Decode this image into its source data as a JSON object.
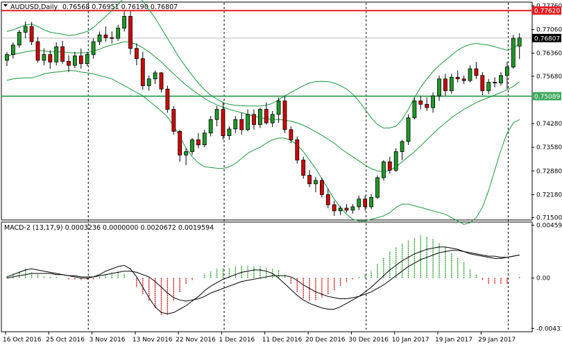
{
  "header": {
    "symbol": "AUDUSD,Daily",
    "ohlc": "0.76568 0.76951 0.76190 0.76807"
  },
  "macd_header": {
    "label": "MACD-2 (13,17,9) 0.0003236 0.0000000 0.0020672 0.0019594"
  },
  "colors": {
    "bull": "#1f9a27",
    "bear": "#d20000",
    "bands": "#1a9a3c",
    "resistance": "#e31e24",
    "support": "#41a85f",
    "label_box": "#000000"
  },
  "chart_data": [
    {
      "type": "candlestick",
      "instrument": "AUDUSD",
      "timeframe": "Daily",
      "ylim": [
        0.7145,
        0.7785
      ],
      "y_ticks": [
        "0.77760",
        "0.77060",
        "0.76360",
        "0.75680",
        "0.74280",
        "0.73580",
        "0.72880",
        "0.72180",
        "0.71500"
      ],
      "y_tick_values": [
        0.7776,
        0.7706,
        0.7636,
        0.7568,
        0.7428,
        0.7358,
        0.7288,
        0.7218,
        0.715
      ],
      "x_labels": [
        "16 Oct 2016",
        "25 Oct 2016",
        "3 Nov 2016",
        "13 Nov 2016",
        "22 Nov 2016",
        "1 Dec 2016",
        "11 Dec 2016",
        "20 Dec 2016",
        "30 Dec 2016",
        "10 Jan 2017",
        "19 Jan 2017",
        "29 Jan 2017"
      ],
      "x_label_index": [
        0,
        7,
        14,
        21,
        28,
        35,
        42,
        49,
        56,
        63,
        70,
        77
      ],
      "price_levels": [
        {
          "name": "resistance",
          "value": 0.7762,
          "label": "0.77620"
        },
        {
          "name": "support",
          "value": 0.75089,
          "label": "0.75089"
        },
        {
          "name": "last",
          "value": 0.76807,
          "label": "0.76807"
        }
      ],
      "candles": [
        [
          0.7615,
          0.764,
          0.7598,
          0.7632
        ],
        [
          0.7632,
          0.7668,
          0.762,
          0.766
        ],
        [
          0.766,
          0.7705,
          0.7652,
          0.7698
        ],
        [
          0.7698,
          0.773,
          0.768,
          0.7715
        ],
        [
          0.7715,
          0.7728,
          0.766,
          0.767
        ],
        [
          0.767,
          0.7684,
          0.7608,
          0.7615
        ],
        [
          0.7615,
          0.765,
          0.76,
          0.7632
        ],
        [
          0.7632,
          0.7645,
          0.759,
          0.761
        ],
        [
          0.761,
          0.7668,
          0.76,
          0.7655
        ],
        [
          0.7655,
          0.7672,
          0.7605,
          0.7612
        ],
        [
          0.7612,
          0.763,
          0.758,
          0.76
        ],
        [
          0.76,
          0.764,
          0.7592,
          0.7628
        ],
        [
          0.7628,
          0.765,
          0.759,
          0.7605
        ],
        [
          0.7605,
          0.764,
          0.7598,
          0.7632
        ],
        [
          0.7632,
          0.768,
          0.762,
          0.767
        ],
        [
          0.767,
          0.77,
          0.766,
          0.769
        ],
        [
          0.769,
          0.7715,
          0.767,
          0.7682
        ],
        [
          0.7682,
          0.77,
          0.7665,
          0.768
        ],
        [
          0.768,
          0.772,
          0.7672,
          0.771
        ],
        [
          0.771,
          0.776,
          0.77,
          0.7745
        ],
        [
          0.7745,
          0.776,
          0.7632,
          0.765
        ],
        [
          0.765,
          0.7665,
          0.76,
          0.762
        ],
        [
          0.762,
          0.764,
          0.7528,
          0.754
        ],
        [
          0.754,
          0.757,
          0.7525,
          0.756
        ],
        [
          0.756,
          0.7585,
          0.7545,
          0.7578
        ],
        [
          0.7578,
          0.758,
          0.752,
          0.753
        ],
        [
          0.753,
          0.754,
          0.746,
          0.747
        ],
        [
          0.747,
          0.748,
          0.7395,
          0.7405
        ],
        [
          0.7405,
          0.741,
          0.7315,
          0.7335
        ],
        [
          0.7335,
          0.7355,
          0.7305,
          0.7345
        ],
        [
          0.7345,
          0.7385,
          0.7335,
          0.738
        ],
        [
          0.738,
          0.74,
          0.7355,
          0.7365
        ],
        [
          0.7365,
          0.741,
          0.7358,
          0.74
        ],
        [
          0.74,
          0.745,
          0.739,
          0.744
        ],
        [
          0.744,
          0.748,
          0.742,
          0.747
        ],
        [
          0.747,
          0.749,
          0.738,
          0.7392
        ],
        [
          0.7392,
          0.742,
          0.738,
          0.7412
        ],
        [
          0.7412,
          0.745,
          0.74,
          0.744
        ],
        [
          0.744,
          0.746,
          0.7395,
          0.741
        ],
        [
          0.741,
          0.747,
          0.7405,
          0.7455
        ],
        [
          0.7455,
          0.747,
          0.741,
          0.7425
        ],
        [
          0.7425,
          0.7475,
          0.7415,
          0.747
        ],
        [
          0.747,
          0.749,
          0.7425,
          0.743
        ],
        [
          0.743,
          0.7465,
          0.7418,
          0.7455
        ],
        [
          0.7455,
          0.7505,
          0.743,
          0.7495
        ],
        [
          0.7495,
          0.751,
          0.74,
          0.741
        ],
        [
          0.741,
          0.742,
          0.737,
          0.738
        ],
        [
          0.738,
          0.739,
          0.731,
          0.732
        ],
        [
          0.732,
          0.733,
          0.7265,
          0.7275
        ],
        [
          0.7275,
          0.729,
          0.724,
          0.725
        ],
        [
          0.725,
          0.727,
          0.7225,
          0.726
        ],
        [
          0.726,
          0.7268,
          0.721,
          0.7218
        ],
        [
          0.7218,
          0.7235,
          0.7178,
          0.7188
        ],
        [
          0.7188,
          0.72,
          0.7155,
          0.717
        ],
        [
          0.717,
          0.7185,
          0.7158,
          0.7178
        ],
        [
          0.7178,
          0.719,
          0.7165,
          0.7172
        ],
        [
          0.7172,
          0.719,
          0.7162,
          0.7182
        ],
        [
          0.7182,
          0.7215,
          0.7172,
          0.7205
        ],
        [
          0.7205,
          0.7215,
          0.717,
          0.7182
        ],
        [
          0.7182,
          0.722,
          0.7175,
          0.721
        ],
        [
          0.721,
          0.7275,
          0.7205,
          0.7268
        ],
        [
          0.7268,
          0.732,
          0.726,
          0.7315
        ],
        [
          0.7315,
          0.733,
          0.728,
          0.729
        ],
        [
          0.729,
          0.7355,
          0.7285,
          0.7345
        ],
        [
          0.7345,
          0.738,
          0.732,
          0.7375
        ],
        [
          0.7375,
          0.7455,
          0.7365,
          0.7445
        ],
        [
          0.7445,
          0.7505,
          0.744,
          0.7495
        ],
        [
          0.7495,
          0.751,
          0.747,
          0.7485
        ],
        [
          0.7485,
          0.7505,
          0.7465,
          0.7475
        ],
        [
          0.7475,
          0.752,
          0.746,
          0.751
        ],
        [
          0.751,
          0.757,
          0.7495,
          0.756
        ],
        [
          0.756,
          0.7575,
          0.751,
          0.7525
        ],
        [
          0.7525,
          0.7575,
          0.7515,
          0.7565
        ],
        [
          0.7565,
          0.7585,
          0.755,
          0.756
        ],
        [
          0.756,
          0.757,
          0.7545,
          0.7555
        ],
        [
          0.7555,
          0.76,
          0.755,
          0.759
        ],
        [
          0.759,
          0.761,
          0.756,
          0.757
        ],
        [
          0.757,
          0.758,
          0.7512,
          0.7525
        ],
        [
          0.7525,
          0.756,
          0.7515,
          0.755
        ],
        [
          0.755,
          0.7565,
          0.7535,
          0.7548
        ],
        [
          0.7548,
          0.758,
          0.754,
          0.757
        ],
        [
          0.757,
          0.761,
          0.753,
          0.7595
        ],
        [
          0.7595,
          0.769,
          0.759,
          0.768
        ],
        [
          0.7657,
          0.7695,
          0.7619,
          0.7681
        ]
      ],
      "bollinger": {
        "upper": [
          0.77,
          0.7705,
          0.7712,
          0.772,
          0.7722,
          0.7715,
          0.7705,
          0.7698,
          0.7695,
          0.7692,
          0.7688,
          0.769,
          0.7695,
          0.77,
          0.7712,
          0.7728,
          0.7745,
          0.7762,
          0.778,
          0.78,
          0.7805,
          0.7805,
          0.779,
          0.7765,
          0.774,
          0.771,
          0.768,
          0.765,
          0.762,
          0.7595,
          0.757,
          0.7548,
          0.7528,
          0.7512,
          0.75,
          0.749,
          0.7485,
          0.7482,
          0.7481,
          0.748,
          0.748,
          0.748,
          0.7482,
          0.7488,
          0.7498,
          0.751,
          0.752,
          0.753,
          0.754,
          0.7548,
          0.7552,
          0.7553,
          0.7552,
          0.7548,
          0.754,
          0.753,
          0.7515,
          0.7495,
          0.747,
          0.7445,
          0.7425,
          0.7415,
          0.7415,
          0.742,
          0.744,
          0.747,
          0.7505,
          0.7535,
          0.756,
          0.7582,
          0.76,
          0.7615,
          0.763,
          0.7645,
          0.7655,
          0.7662,
          0.7665,
          0.7662,
          0.766,
          0.7655,
          0.765,
          0.7645,
          0.765,
          0.7665
        ],
        "middle": [
          0.7628,
          0.7632,
          0.7636,
          0.764,
          0.7643,
          0.7644,
          0.7643,
          0.764,
          0.764,
          0.764,
          0.7638,
          0.7637,
          0.7637,
          0.7638,
          0.7642,
          0.7648,
          0.7655,
          0.766,
          0.7665,
          0.767,
          0.7668,
          0.7662,
          0.7652,
          0.764,
          0.7625,
          0.761,
          0.7592,
          0.7575,
          0.7558,
          0.7542,
          0.7528,
          0.7515,
          0.7502,
          0.7492,
          0.7483,
          0.7476,
          0.747,
          0.7465,
          0.746,
          0.7455,
          0.745,
          0.7446,
          0.7442,
          0.744,
          0.744,
          0.7438,
          0.7435,
          0.743,
          0.7423,
          0.7414,
          0.7404,
          0.7393,
          0.7382,
          0.737,
          0.7355,
          0.7342,
          0.733,
          0.7318,
          0.7305,
          0.7295,
          0.7288,
          0.7285,
          0.729,
          0.73,
          0.7315,
          0.733,
          0.7345,
          0.7362,
          0.738,
          0.7398,
          0.7415,
          0.743,
          0.7445,
          0.7458,
          0.747,
          0.748,
          0.749,
          0.7498,
          0.7505,
          0.7512,
          0.752,
          0.7528,
          0.7538,
          0.7552
        ],
        "lower": [
          0.7556,
          0.756,
          0.7562,
          0.7563,
          0.7563,
          0.7568,
          0.7575,
          0.7578,
          0.758,
          0.7582,
          0.7585,
          0.7584,
          0.758,
          0.7578,
          0.7575,
          0.757,
          0.7565,
          0.756,
          0.755,
          0.754,
          0.753,
          0.752,
          0.751,
          0.7495,
          0.748,
          0.7465,
          0.7448,
          0.742,
          0.739,
          0.7355,
          0.733,
          0.7312,
          0.73,
          0.7298,
          0.7296,
          0.7295,
          0.73,
          0.731,
          0.7325,
          0.734,
          0.735,
          0.7358,
          0.737,
          0.738,
          0.7385,
          0.7385,
          0.7378,
          0.7365,
          0.7345,
          0.732,
          0.7295,
          0.7265,
          0.7235,
          0.7205,
          0.718,
          0.716,
          0.7145,
          0.714,
          0.714,
          0.7145,
          0.715,
          0.7155,
          0.7165,
          0.718,
          0.719,
          0.719,
          0.7185,
          0.718,
          0.7175,
          0.717,
          0.7165,
          0.716,
          0.715,
          0.714,
          0.713,
          0.7135,
          0.715,
          0.718,
          0.723,
          0.729,
          0.735,
          0.74,
          0.743,
          0.744
        ]
      }
    },
    {
      "type": "macd",
      "label": "MACD-2 (13,17,9)",
      "ylim": [
        -0.0046,
        0.0048
      ],
      "y_ticks": [
        "0.004595",
        "0.00",
        "-0.004378"
      ],
      "y_tick_values": [
        0.004595,
        0.0,
        -0.004378
      ],
      "histogram": [
        0.0002,
        0.0004,
        0.0006,
        0.0008,
        0.0005,
        0.0003,
        0.0002,
        0.0001,
        0.0001,
        0.0,
        -0.0001,
        -0.0001,
        -0.0002,
        -0.0002,
        -0.0001,
        0.0001,
        0.0003,
        0.0005,
        0.0006,
        0.0004,
        0.0,
        -0.0008,
        -0.0014,
        -0.002,
        -0.0026,
        -0.0032,
        -0.0032,
        -0.002,
        -0.0012,
        -0.0005,
        -0.0002,
        0.0,
        0.0004,
        0.0006,
        0.0008,
        0.0009,
        0.0009,
        0.001,
        0.0011,
        0.0011,
        0.001,
        0.001,
        0.0009,
        0.0008,
        0.0007,
        0.0003,
        -0.0005,
        -0.0012,
        -0.0018,
        -0.002,
        -0.0019,
        -0.0017,
        -0.0014,
        -0.0011,
        -0.0007,
        -0.0004,
        -0.0001,
        0.0001,
        0.0003,
        0.0006,
        0.0012,
        0.0018,
        0.0023,
        0.0027,
        0.003,
        0.0033,
        0.0035,
        0.0037,
        0.0036,
        0.0034,
        0.003,
        0.0027,
        0.0022,
        0.0018,
        0.0014,
        0.0008,
        0.0003,
        -0.0002,
        -0.0005,
        -0.0005,
        -0.0005,
        -0.0005,
        0.0,
        0.0001
      ],
      "signal": [
        0.0,
        0.0001,
        0.0002,
        0.0003,
        0.0004,
        0.0004,
        0.0004,
        0.0004,
        0.0003,
        0.0003,
        0.0002,
        0.0002,
        0.0001,
        0.0001,
        0.0001,
        0.0002,
        0.0003,
        0.0004,
        0.0005,
        0.0006,
        0.0006,
        0.0005,
        0.0003,
        0.0001,
        -0.0003,
        -0.0008,
        -0.0013,
        -0.0017,
        -0.0019,
        -0.002,
        -0.0019,
        -0.0018,
        -0.0016,
        -0.0013,
        -0.0011,
        -0.0009,
        -0.0007,
        -0.0005,
        -0.0003,
        -0.0002,
        -0.0001,
        0.0,
        0.0001,
        0.0002,
        0.0002,
        0.0002,
        0.0001,
        -0.0002,
        -0.0006,
        -0.0009,
        -0.0012,
        -0.0014,
        -0.0016,
        -0.0017,
        -0.0018,
        -0.0018,
        -0.0017,
        -0.0016,
        -0.0014,
        -0.0012,
        -0.0009,
        -0.0006,
        -0.0002,
        0.0002,
        0.0006,
        0.001,
        0.0013,
        0.0016,
        0.0018,
        0.002,
        0.0022,
        0.0023,
        0.0024,
        0.0024,
        0.0023,
        0.0022,
        0.0021,
        0.002,
        0.0019,
        0.0019,
        0.0018,
        0.0018,
        0.0019,
        0.002
      ],
      "macd": [
        0.0001,
        0.0003,
        0.0005,
        0.0007,
        0.0008,
        0.0007,
        0.0006,
        0.0005,
        0.0004,
        0.0003,
        0.0002,
        0.0001,
        0.0,
        0.0,
        0.0001,
        0.0003,
        0.0006,
        0.0008,
        0.001,
        0.0011,
        0.0008,
        0.0001,
        -0.0008,
        -0.0017,
        -0.0025,
        -0.003,
        -0.0031,
        -0.003,
        -0.0027,
        -0.0024,
        -0.002,
        -0.0016,
        -0.0011,
        -0.0007,
        -0.0004,
        -0.0001,
        0.0001,
        0.0003,
        0.0005,
        0.0006,
        0.0007,
        0.0007,
        0.0006,
        0.0004,
        0.0,
        -0.0005,
        -0.001,
        -0.0015,
        -0.0019,
        -0.0022,
        -0.0024,
        -0.0026,
        -0.0027,
        -0.0027,
        -0.0025,
        -0.0022,
        -0.0019,
        -0.0016,
        -0.0012,
        -0.0008,
        -0.0003,
        0.0002,
        0.0007,
        0.0011,
        0.0015,
        0.0018,
        0.0021,
        0.0023,
        0.0025,
        0.0026,
        0.0027,
        0.0027,
        0.0026,
        0.0025,
        0.0023,
        0.0021,
        0.002,
        0.0019,
        0.0018,
        0.0017,
        0.0017,
        0.0018,
        0.0019,
        0.002
      ]
    }
  ]
}
